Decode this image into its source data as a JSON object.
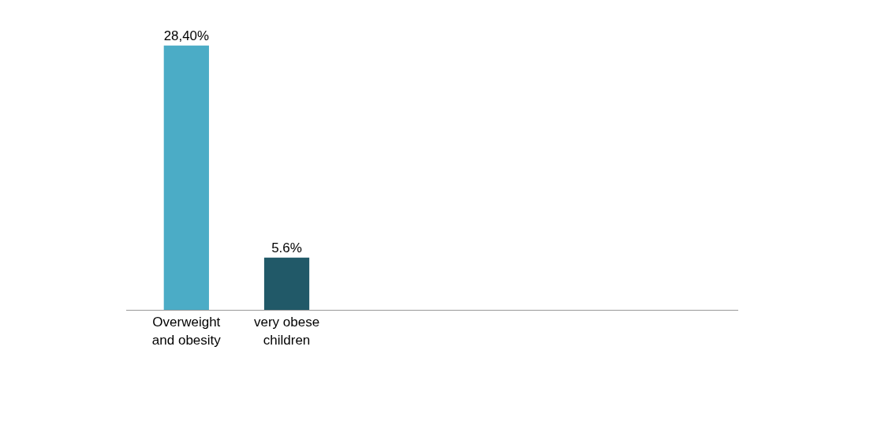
{
  "chart_data": {
    "type": "bar",
    "categories": [
      "Overweight\nand obesity",
      "very obese\nchildren"
    ],
    "values": [
      28.4,
      5.6
    ],
    "colors": [
      "#4bacc6",
      "#215968"
    ],
    "value_labels": [
      "28,40%",
      "5.6%"
    ]
  }
}
